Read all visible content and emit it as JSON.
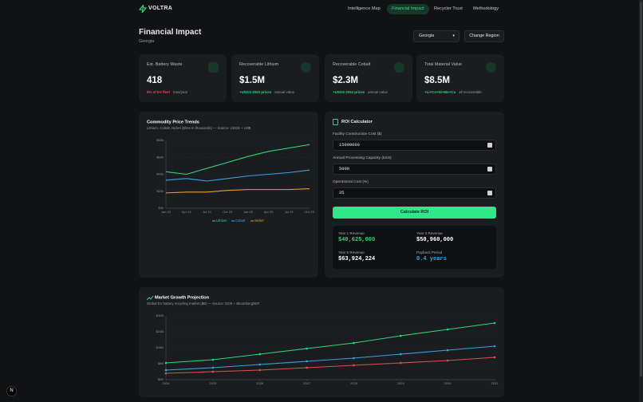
{
  "nav": {
    "logo": "VOLTRA",
    "links": [
      "Intelligence Map",
      "Financial Impact",
      "Recycler Trust",
      "Methodology"
    ]
  },
  "header": {
    "title": "Financial Impact",
    "region": "Georgia",
    "region_select": "Georgia",
    "change_button": "Change Region"
  },
  "stats": [
    {
      "label": "Est. Battery Waste",
      "value": "418",
      "highlight": "8% of EV fleet",
      "note": "tons/year"
    },
    {
      "label": "Recoverable Lithium",
      "value": "$1.5M",
      "highlight": "+USGS 2024 prices",
      "note": "annual value"
    },
    {
      "label": "Recoverable Cobalt",
      "value": "$2.3M",
      "highlight": "+USGS 2024 prices",
      "note": "annual value"
    },
    {
      "label": "Total Material Value",
      "value": "$8.5M",
      "highlight": "+Li+Co+Ni+Mn+Cu",
      "note": "all recoverable"
    }
  ],
  "roi": {
    "title": "ROI Calculator",
    "fields": [
      {
        "label": "Facility Construction Cost ($)",
        "value": "15000000"
      },
      {
        "label": "Annual Processing Capacity (tons)",
        "value": "5000"
      },
      {
        "label": "Operational Cost (%)",
        "value": "35"
      }
    ],
    "button": "Calculate ROI",
    "results": [
      {
        "label": "Year 1 Revenue",
        "value": "$40,625,000"
      },
      {
        "label": "Year 3 Revenue",
        "value": "$50,960,000"
      },
      {
        "label": "Year 5 Revenue",
        "value": "$63,924,224"
      },
      {
        "label": "Payback Period",
        "value": "0.4 years"
      }
    ]
  },
  "chart_data": [
    {
      "type": "line",
      "title": "Commodity Price Trends",
      "subtitle": "Lithium, Cobalt, Nickel ($/ton in thousands) — Source: USGS + LME",
      "categories": [
        "Jan 24",
        "Apr 24",
        "Jul 24",
        "Oct 24",
        "Jan 25",
        "Apr 25",
        "Jul 25",
        "Oct 25"
      ],
      "series": [
        {
          "name": "Lithium",
          "color": "#2fd47a",
          "values": [
            43,
            40,
            47,
            54,
            61,
            67,
            71,
            75
          ]
        },
        {
          "name": "Cobalt",
          "color": "#3aa3e0",
          "values": [
            33,
            35,
            32,
            35,
            38,
            40,
            42,
            45
          ]
        },
        {
          "name": "Nickel",
          "color": "#e0a030",
          "values": [
            18,
            19,
            19,
            21,
            22,
            22,
            22,
            23
          ]
        }
      ],
      "ylim": [
        0,
        80
      ],
      "yticks": [
        {
          "value": 0,
          "label": "$0k"
        },
        {
          "value": 20,
          "label": "$20k"
        },
        {
          "value": 40,
          "label": "$40k"
        },
        {
          "value": 60,
          "label": "$60k"
        },
        {
          "value": 80,
          "label": "$80k"
        }
      ],
      "grid": true,
      "legend": "bottom"
    },
    {
      "type": "line",
      "title": "Market Growth Projection",
      "subtitle": "Global EV battery recycling market ($B) — Source: DOE + BloombergNEF",
      "x": [
        2024,
        2025,
        2026,
        2027,
        2028,
        2029,
        2030,
        2031
      ],
      "xlim": [
        2024,
        2031
      ],
      "xticks": [
        2024,
        2025,
        2026,
        2027,
        2028,
        2029,
        2030,
        2031
      ],
      "series": [
        {
          "color": "#2fd47a",
          "values": [
            8.4,
            10,
            12.8,
            15.6,
            18.4,
            22,
            25.2,
            28.4
          ]
        },
        {
          "color": "#3aa3e0",
          "values": [
            4.8,
            6,
            7.6,
            9.2,
            10.8,
            12.8,
            14.8,
            16.8
          ]
        },
        {
          "color": "#e05050",
          "values": [
            3.2,
            4,
            4.8,
            6,
            7.2,
            8.4,
            9.6,
            11.2
          ]
        }
      ],
      "ylim": [
        0,
        32
      ],
      "yticks": [
        {
          "value": 0,
          "label": "$0B"
        },
        {
          "value": 8,
          "label": "$8B"
        },
        {
          "value": 16,
          "label": "$16B"
        },
        {
          "value": 24,
          "label": "$24B"
        },
        {
          "value": 32,
          "label": "$32B"
        }
      ],
      "grid": true,
      "markers": true
    }
  ],
  "dev_badge": "N"
}
